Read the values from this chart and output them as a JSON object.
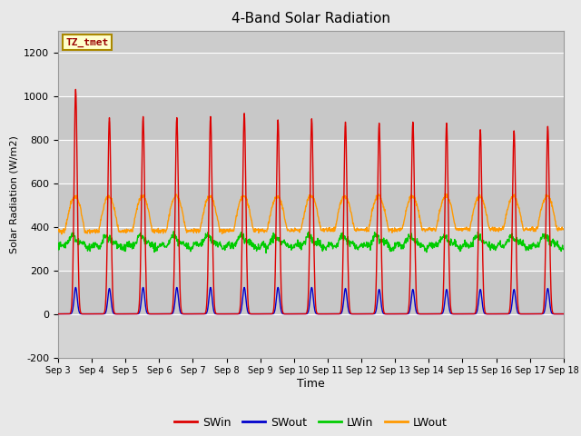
{
  "title": "4-Band Solar Radiation",
  "xlabel": "Time",
  "ylabel": "Solar Radiation (W/m2)",
  "ylim": [
    -200,
    1300
  ],
  "background_color": "#e8e8e8",
  "plot_bg_color": "#cccccc",
  "annotation_text": "TZ_tmet",
  "annotation_bg": "#ffffcc",
  "annotation_border": "#aa8800",
  "colors": {
    "SWin": "#dd0000",
    "SWout": "#0000cc",
    "LWin": "#00cc00",
    "LWout": "#ff9900"
  },
  "n_days": 15,
  "hours_per_day": 24,
  "sw_peaks": [
    1030,
    900,
    905,
    900,
    905,
    920,
    890,
    895,
    880,
    875,
    880,
    875,
    845,
    840,
    860
  ],
  "sw_out_peaks": [
    135,
    130,
    135,
    135,
    135,
    135,
    135,
    135,
    130,
    125,
    125,
    125,
    125,
    125,
    130
  ],
  "lw_in_base": 310,
  "lw_out_base": 380,
  "lw_out_peak": 540,
  "xtick_labels": [
    "Sep 3",
    "Sep 4",
    "Sep 5",
    "Sep 6",
    "Sep 7",
    "Sep 8",
    "Sep 9",
    "Sep 10",
    "Sep 11",
    "Sep 12",
    "Sep 13",
    "Sep 14",
    "Sep 15",
    "Sep 16",
    "Sep 17",
    "Sep 18"
  ],
  "ytick_positions": [
    -200,
    0,
    200,
    400,
    600,
    800,
    1000,
    1200
  ],
  "grid_color": "#e0e0e0",
  "band_colors": [
    "#d0d0d0",
    "#c0c0c0"
  ]
}
